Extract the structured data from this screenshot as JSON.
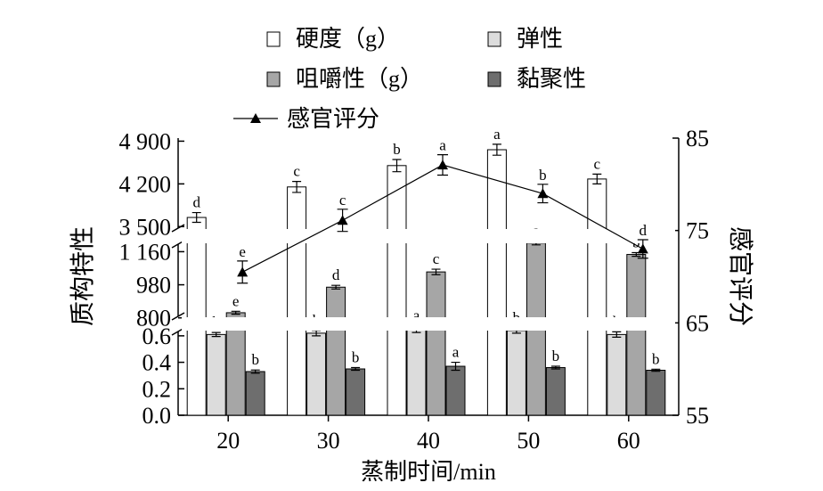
{
  "chart_data": {
    "type": "bar",
    "x": [
      20,
      30,
      40,
      50,
      60
    ],
    "xlabel": "蒸制时间/min",
    "ylabel_left": "质构特性",
    "ylabel_right": "感官评分",
    "y_left_ticks": [
      "4 900",
      "4 200",
      "3 500",
      "1 160",
      "980",
      "800",
      "0.6",
      "0.4",
      "0.2",
      "0.0"
    ],
    "y_right_ticks": [
      "85",
      "75",
      "65",
      "55"
    ],
    "y_right_range": [
      55,
      85
    ],
    "legend_position": "top",
    "legend": [
      "硬度（g）",
      "弹性",
      "咀嚼性（g）",
      "黏聚性",
      "感官评分"
    ],
    "series": [
      {
        "name": "硬度（g）",
        "values": [
          3650,
          4150,
          4500,
          4760,
          4280
        ],
        "errors": [
          80,
          90,
          100,
          90,
          80
        ],
        "labels": [
          "d",
          "c",
          "b",
          "a",
          "c"
        ],
        "color": "#ffffff"
      },
      {
        "name": "弹性",
        "values": [
          0.61,
          0.62,
          0.65,
          0.64,
          0.61
        ],
        "errors": [
          0.015,
          0.02,
          0.025,
          0.02,
          0.02
        ],
        "labels": [
          "b",
          "b",
          "a",
          "b",
          "b"
        ],
        "color": "#dcdcdc"
      },
      {
        "name": "咀嚼性（g）",
        "values": [
          828,
          967,
          1050,
          1207,
          1145
        ],
        "errors": [
          8,
          10,
          15,
          10,
          10
        ],
        "labels": [
          "e",
          "d",
          "c",
          "a",
          "b"
        ],
        "color": "#a6a6a6"
      },
      {
        "name": "黏聚性",
        "values": [
          0.33,
          0.35,
          0.37,
          0.36,
          0.34
        ],
        "errors": [
          0.012,
          0.01,
          0.03,
          0.01,
          0.008
        ],
        "labels": [
          "b",
          "b",
          "a",
          "b",
          "b"
        ],
        "color": "#6e6e6e"
      },
      {
        "name": "感官评分",
        "type": "line",
        "values": [
          70.5,
          76.1,
          82.1,
          79.0,
          73.0
        ],
        "errors": [
          1.2,
          1.2,
          1.1,
          1.0,
          1.0
        ],
        "labels": [
          "e",
          "c",
          "a",
          "b",
          "d"
        ],
        "color": "#000000"
      }
    ]
  }
}
